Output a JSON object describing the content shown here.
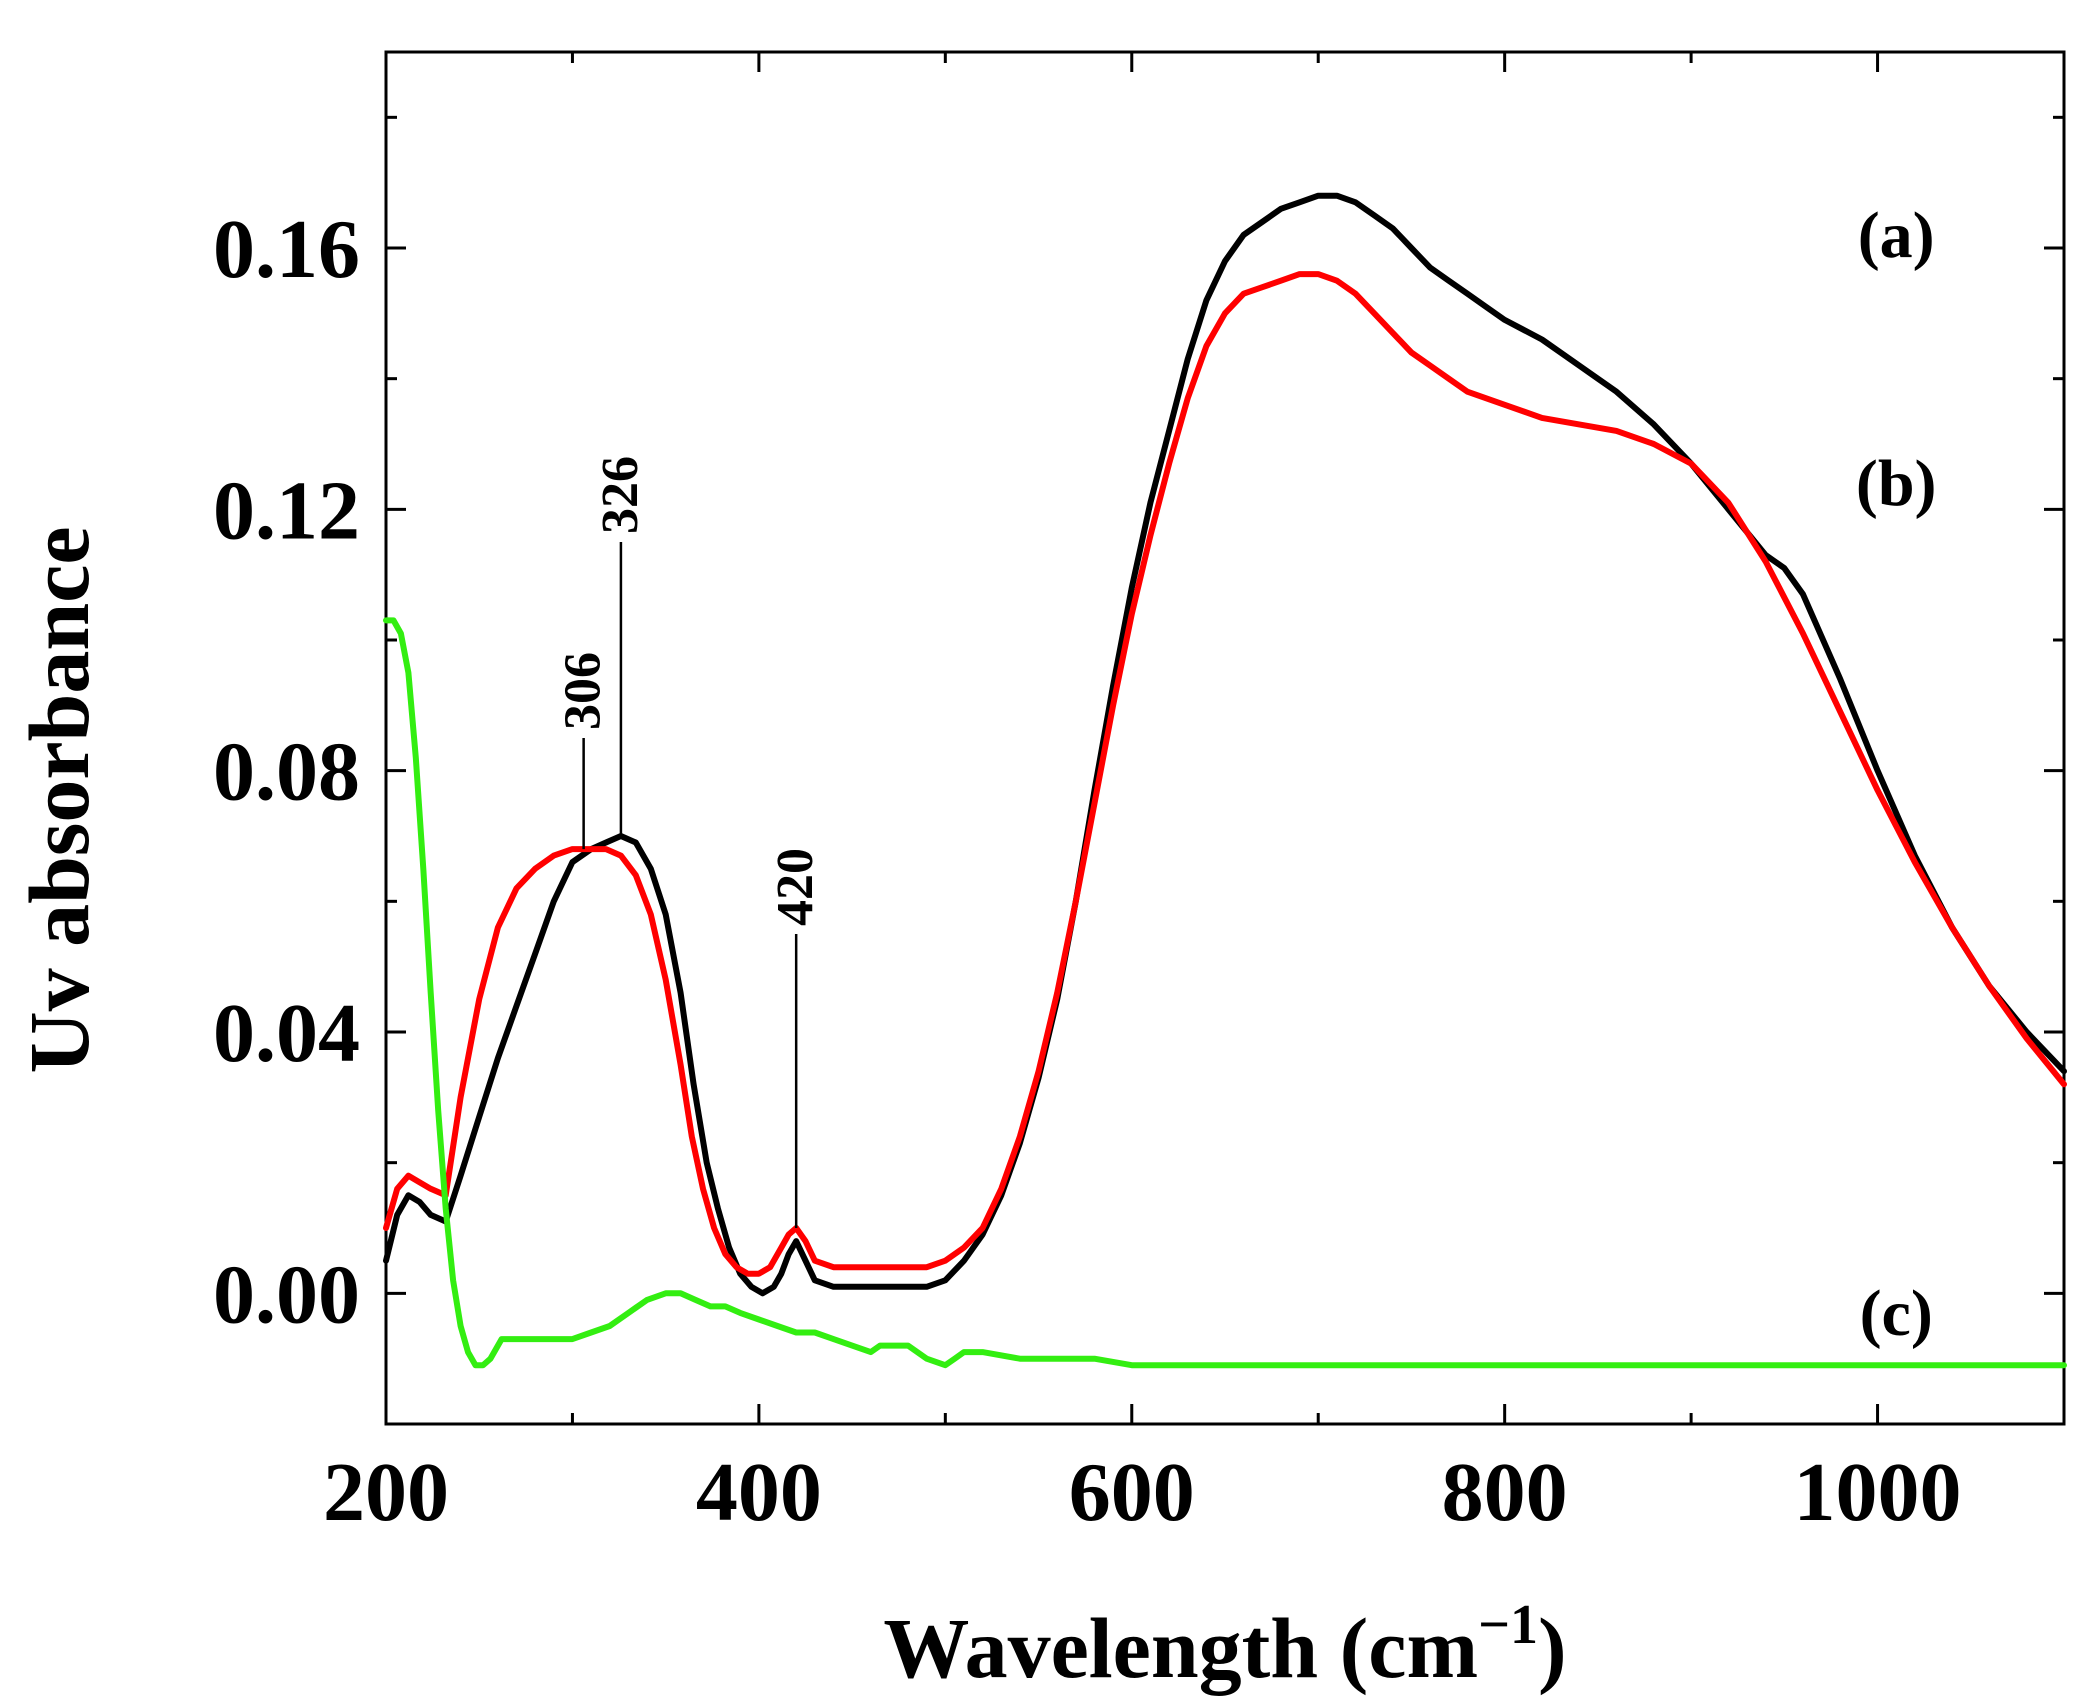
{
  "chart_data": {
    "type": "line",
    "title": "",
    "xlabel": "Wavelength (cm",
    "xlabel_superscript": "−1",
    "xlabel_close": ")",
    "ylabel": "Uv absorbance",
    "xlim": [
      200,
      1100
    ],
    "ylim": [
      -0.02,
      0.19
    ],
    "xticks": [
      200,
      400,
      600,
      800,
      1000
    ],
    "xtick_labels": [
      "200",
      "400",
      "600",
      "800",
      "1000"
    ],
    "xminor": [
      300,
      500,
      700,
      900,
      1100
    ],
    "yticks": [
      0.0,
      0.04,
      0.08,
      0.12,
      0.16
    ],
    "ytick_labels": [
      "0.00",
      "0.04",
      "0.08",
      "0.12",
      "0.16"
    ],
    "yminor": [
      -0.02,
      0.02,
      0.06,
      0.1,
      0.14,
      0.18
    ],
    "grid": false,
    "series": [
      {
        "name": "(a)",
        "color": "#000000",
        "label_at": [
          1010,
          0.162
        ],
        "x": [
          200,
          206,
          212,
          218,
          224,
          232,
          240,
          250,
          260,
          270,
          280,
          290,
          300,
          310,
          318,
          326,
          334,
          342,
          350,
          358,
          365,
          372,
          378,
          384,
          390,
          396,
          402,
          408,
          412,
          416,
          420,
          425,
          430,
          440,
          460,
          480,
          490,
          500,
          510,
          520,
          530,
          540,
          550,
          560,
          570,
          580,
          590,
          600,
          610,
          620,
          630,
          640,
          650,
          660,
          670,
          680,
          690,
          700,
          710,
          720,
          730,
          740,
          750,
          760,
          770,
          780,
          790,
          800,
          820,
          840,
          860,
          880,
          900,
          920,
          940,
          950,
          960,
          980,
          1000,
          1020,
          1040,
          1060,
          1080,
          1100
        ],
        "y": [
          0.005,
          0.012,
          0.015,
          0.014,
          0.012,
          0.011,
          0.018,
          0.027,
          0.036,
          0.044,
          0.052,
          0.06,
          0.066,
          0.068,
          0.069,
          0.07,
          0.069,
          0.065,
          0.058,
          0.046,
          0.032,
          0.02,
          0.013,
          0.007,
          0.003,
          0.001,
          0.0,
          0.001,
          0.003,
          0.006,
          0.008,
          0.005,
          0.002,
          0.001,
          0.001,
          0.001,
          0.001,
          0.002,
          0.005,
          0.009,
          0.015,
          0.023,
          0.033,
          0.045,
          0.06,
          0.077,
          0.093,
          0.108,
          0.121,
          0.132,
          0.143,
          0.152,
          0.158,
          0.162,
          0.164,
          0.166,
          0.167,
          0.168,
          0.168,
          0.167,
          0.165,
          0.163,
          0.16,
          0.157,
          0.155,
          0.153,
          0.151,
          0.149,
          0.146,
          0.142,
          0.138,
          0.133,
          0.127,
          0.12,
          0.113,
          0.111,
          0.107,
          0.094,
          0.08,
          0.067,
          0.056,
          0.047,
          0.04,
          0.034
        ]
      },
      {
        "name": "(b)",
        "color": "#ff0000",
        "label_at": [
          1010,
          0.124
        ],
        "x": [
          200,
          206,
          212,
          218,
          224,
          232,
          240,
          250,
          260,
          270,
          280,
          290,
          300,
          310,
          318,
          326,
          334,
          342,
          350,
          358,
          364,
          370,
          376,
          382,
          388,
          394,
          400,
          406,
          412,
          416,
          420,
          425,
          430,
          440,
          460,
          480,
          490,
          500,
          510,
          520,
          530,
          540,
          550,
          560,
          570,
          580,
          590,
          600,
          610,
          620,
          630,
          640,
          650,
          660,
          670,
          680,
          690,
          700,
          710,
          720,
          730,
          740,
          750,
          760,
          780,
          800,
          820,
          840,
          860,
          880,
          900,
          920,
          940,
          960,
          980,
          1000,
          1020,
          1040,
          1060,
          1080,
          1100
        ],
        "y": [
          0.01,
          0.016,
          0.018,
          0.017,
          0.016,
          0.015,
          0.03,
          0.045,
          0.056,
          0.062,
          0.065,
          0.067,
          0.068,
          0.068,
          0.068,
          0.067,
          0.064,
          0.058,
          0.048,
          0.035,
          0.024,
          0.016,
          0.01,
          0.006,
          0.004,
          0.003,
          0.003,
          0.004,
          0.007,
          0.009,
          0.01,
          0.008,
          0.005,
          0.004,
          0.004,
          0.004,
          0.004,
          0.005,
          0.007,
          0.01,
          0.016,
          0.024,
          0.034,
          0.046,
          0.06,
          0.075,
          0.09,
          0.104,
          0.116,
          0.127,
          0.137,
          0.145,
          0.15,
          0.153,
          0.154,
          0.155,
          0.156,
          0.156,
          0.155,
          0.153,
          0.15,
          0.147,
          0.144,
          0.142,
          0.138,
          0.136,
          0.134,
          0.133,
          0.132,
          0.13,
          0.127,
          0.121,
          0.112,
          0.101,
          0.089,
          0.077,
          0.066,
          0.056,
          0.047,
          0.039,
          0.032
        ]
      },
      {
        "name": "(c)",
        "color": "#33ee11",
        "label_at": [
          1010,
          -0.003
        ],
        "x": [
          200,
          204,
          208,
          212,
          216,
          220,
          224,
          228,
          232,
          236,
          240,
          244,
          248,
          252,
          256,
          262,
          270,
          280,
          290,
          300,
          310,
          320,
          330,
          340,
          350,
          358,
          366,
          374,
          382,
          390,
          400,
          410,
          420,
          430,
          440,
          450,
          460,
          465,
          470,
          480,
          490,
          500,
          505,
          510,
          520,
          540,
          560,
          580,
          600,
          650,
          700,
          750,
          800,
          850,
          900,
          950,
          1000,
          1050,
          1100
        ],
        "y": [
          0.103,
          0.103,
          0.101,
          0.095,
          0.082,
          0.065,
          0.046,
          0.028,
          0.013,
          0.002,
          -0.005,
          -0.009,
          -0.011,
          -0.011,
          -0.01,
          -0.007,
          -0.007,
          -0.007,
          -0.007,
          -0.007,
          -0.006,
          -0.005,
          -0.003,
          -0.001,
          0.0,
          0.0,
          -0.001,
          -0.002,
          -0.002,
          -0.003,
          -0.004,
          -0.005,
          -0.006,
          -0.006,
          -0.007,
          -0.008,
          -0.009,
          -0.008,
          -0.008,
          -0.008,
          -0.01,
          -0.011,
          -0.01,
          -0.009,
          -0.009,
          -0.01,
          -0.01,
          -0.01,
          -0.011,
          -0.011,
          -0.011,
          -0.011,
          -0.011,
          -0.011,
          -0.011,
          -0.011,
          -0.011,
          -0.011,
          -0.011
        ]
      }
    ],
    "annotations": [
      {
        "label": "306",
        "x": 306,
        "y_from": 0.068,
        "y_to": 0.085
      },
      {
        "label": "326",
        "x": 326,
        "y_from": 0.07,
        "y_to": 0.115
      },
      {
        "label": "420",
        "x": 420,
        "y_from": 0.01,
        "y_to": 0.055
      }
    ]
  }
}
